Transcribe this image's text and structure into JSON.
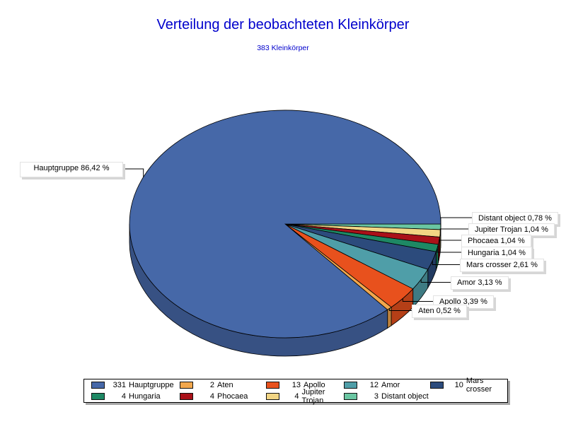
{
  "title": "Verteilung der beobachteten Kleinkörper",
  "subtitle": "383 Kleinkörper",
  "accent_color": "#0000cc",
  "chart_data": {
    "type": "pie",
    "style": "3d",
    "title": "Verteilung der beobachteten Kleinkörper",
    "subtitle": "383 Kleinkörper",
    "total": 383,
    "start_angle_deg": 0,
    "direction": "clockwise",
    "slices": [
      {
        "name": "Distant object",
        "count": 3,
        "percent": 0.78,
        "callout": "Distant object 0,78 %",
        "color": "#6AC6A2"
      },
      {
        "name": "Jupiter Trojan",
        "count": 4,
        "percent": 1.04,
        "callout": "Jupiter Trojan 1,04 %",
        "color": "#F2D584"
      },
      {
        "name": "Phocaea",
        "count": 4,
        "percent": 1.04,
        "callout": "Phocaea 1,04 %",
        "color": "#AA1119"
      },
      {
        "name": "Hungaria",
        "count": 4,
        "percent": 1.04,
        "callout": "Hungaria 1,04 %",
        "color": "#1E8864"
      },
      {
        "name": "Mars crosser",
        "count": 10,
        "percent": 2.61,
        "callout": "Mars crosser 2,61 %",
        "color": "#2C4B7C"
      },
      {
        "name": "Amor",
        "count": 12,
        "percent": 3.13,
        "callout": "Amor 3,13 %",
        "color": "#4F9EA8"
      },
      {
        "name": "Apollo",
        "count": 13,
        "percent": 3.39,
        "callout": "Apollo 3,39 %",
        "color": "#E8511D"
      },
      {
        "name": "Aten",
        "count": 2,
        "percent": 0.52,
        "callout": "Aten 0,52 %",
        "color": "#F2A74D"
      },
      {
        "name": "Hauptgruppe",
        "count": 331,
        "percent": 86.42,
        "callout": "Hauptgruppe 86,42 %",
        "color": "#4668A8"
      }
    ],
    "legend": {
      "position": "bottom",
      "items": [
        {
          "count": "331",
          "name": "Hauptgruppe",
          "color": "#4668A8"
        },
        {
          "count": "2",
          "name": "Aten",
          "color": "#F2A74D"
        },
        {
          "count": "13",
          "name": "Apollo",
          "color": "#E8511D"
        },
        {
          "count": "12",
          "name": "Amor",
          "color": "#4F9EA8"
        },
        {
          "count": "10",
          "name": "Mars crosser",
          "color": "#2C4B7C"
        },
        {
          "count": "4",
          "name": "Hungaria",
          "color": "#1E8864"
        },
        {
          "count": "4",
          "name": "Phocaea",
          "color": "#AA1119"
        },
        {
          "count": "4",
          "name": "Jupiter Trojan",
          "color": "#F2D584"
        },
        {
          "count": "3",
          "name": "Distant object",
          "color": "#6AC6A2"
        }
      ]
    }
  }
}
